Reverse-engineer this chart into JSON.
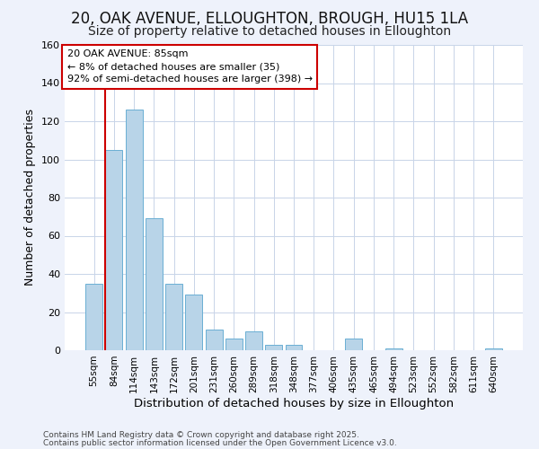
{
  "title": "20, OAK AVENUE, ELLOUGHTON, BROUGH, HU15 1LA",
  "subtitle": "Size of property relative to detached houses in Elloughton",
  "xlabel": "Distribution of detached houses by size in Elloughton",
  "ylabel": "Number of detached properties",
  "bar_labels": [
    "55sqm",
    "84sqm",
    "114sqm",
    "143sqm",
    "172sqm",
    "201sqm",
    "231sqm",
    "260sqm",
    "289sqm",
    "318sqm",
    "348sqm",
    "377sqm",
    "406sqm",
    "435sqm",
    "465sqm",
    "494sqm",
    "523sqm",
    "552sqm",
    "582sqm",
    "611sqm",
    "640sqm"
  ],
  "bar_heights": [
    35,
    105,
    126,
    69,
    35,
    29,
    11,
    6,
    10,
    3,
    3,
    0,
    0,
    6,
    0,
    1,
    0,
    0,
    0,
    0,
    1
  ],
  "bar_color": "#b8d4e8",
  "bar_edge_color": "#6aafd4",
  "vline_color": "#cc0000",
  "ylim": [
    0,
    160
  ],
  "yticks": [
    0,
    20,
    40,
    60,
    80,
    100,
    120,
    140,
    160
  ],
  "annotation_title": "20 OAK AVENUE: 85sqm",
  "annotation_line1": "← 8% of detached houses are smaller (35)",
  "annotation_line2": "92% of semi-detached houses are larger (398) →",
  "footer1": "Contains HM Land Registry data © Crown copyright and database right 2025.",
  "footer2": "Contains public sector information licensed under the Open Government Licence v3.0.",
  "background_color": "#eef2fb",
  "plot_bg_color": "#ffffff",
  "grid_color": "#c8d4e8",
  "title_fontsize": 12,
  "subtitle_fontsize": 10,
  "xlabel_fontsize": 9.5,
  "ylabel_fontsize": 9,
  "footer_fontsize": 6.5
}
